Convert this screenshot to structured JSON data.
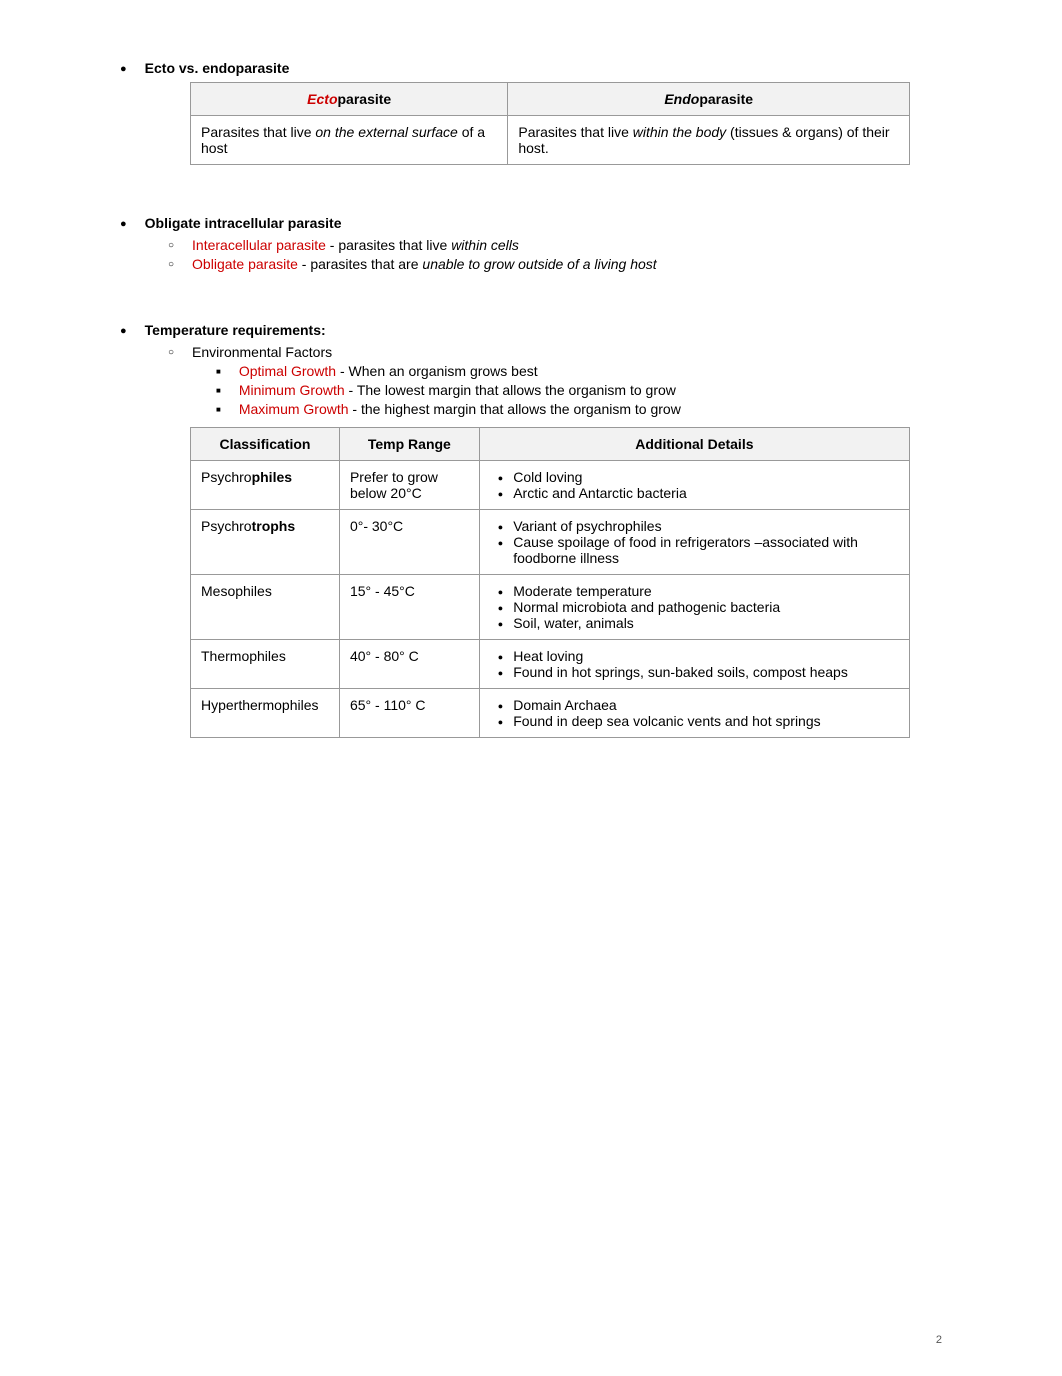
{
  "section1": {
    "heading": "Ecto vs. endoparasite",
    "table": {
      "header_left_prefix": "Ecto",
      "header_left_suffix": "parasite",
      "header_right_prefix": "Endo",
      "header_right_suffix": "parasite",
      "cell_left_a": "Parasites that live ",
      "cell_left_b": "on the external surface",
      "cell_left_c": " of a host",
      "cell_right_a": "Parasites that live ",
      "cell_right_b": "within the body",
      "cell_right_c": " (tissues & organs) of their host."
    }
  },
  "section2": {
    "heading": "Obligate intracellular parasite",
    "items": [
      {
        "term": "Interacellular parasite",
        "sep": " - parasites that live ",
        "italic": "within cells"
      },
      {
        "term": "Obligate parasite",
        "sep": " - parasites that are ",
        "italic": "unable to grow outside of a living host"
      }
    ]
  },
  "section3": {
    "heading": "Temperature requirements:",
    "sub_heading": "Environmental Factors",
    "factors": [
      {
        "term": "Optimal Growth",
        "sep": " - ",
        "desc": "When an organism grows best"
      },
      {
        "term": "Minimum Growth",
        "sep": " - ",
        "desc": "The lowest margin that allows the organism to grow"
      },
      {
        "term": "Maximum Growth",
        "sep": " - ",
        "desc": "the highest margin that allows the organism to grow"
      }
    ],
    "table": {
      "columns": [
        "Classification",
        "Temp Range",
        "Additional Details"
      ],
      "rows": [
        {
          "class_a": "Psychro",
          "class_b": "philes",
          "temp": "Prefer to grow below 20°C",
          "details": [
            "Cold loving",
            "Arctic and Antarctic bacteria"
          ]
        },
        {
          "class_a": "Psychro",
          "class_b": "trophs",
          "temp": "0°- 30°C",
          "details": [
            "Variant of psychrophiles",
            "Cause spoilage of food in refrigerators –associated with foodborne illness"
          ]
        },
        {
          "class_a": "Mesophiles",
          "class_b": "",
          "temp": "15° - 45°C",
          "details": [
            "Moderate temperature",
            "Normal microbiota and pathogenic bacteria",
            "Soil, water, animals"
          ]
        },
        {
          "class_a": "Thermophiles",
          "class_b": "",
          "temp": "40° - 80° C",
          "details": [
            "Heat loving",
            "Found in hot springs, sun-baked soils, compost heaps"
          ]
        },
        {
          "class_a": "Hyperthermophiles",
          "class_b": "",
          "temp": "65° - 110° C",
          "details": [
            "Domain Archaea",
            "Found in deep sea volcanic vents and hot springs"
          ]
        }
      ]
    }
  },
  "page_number": "2",
  "colors": {
    "red": "#cc0000",
    "text": "#000000",
    "header_bg": "#f2f2f2",
    "border": "#999999"
  }
}
